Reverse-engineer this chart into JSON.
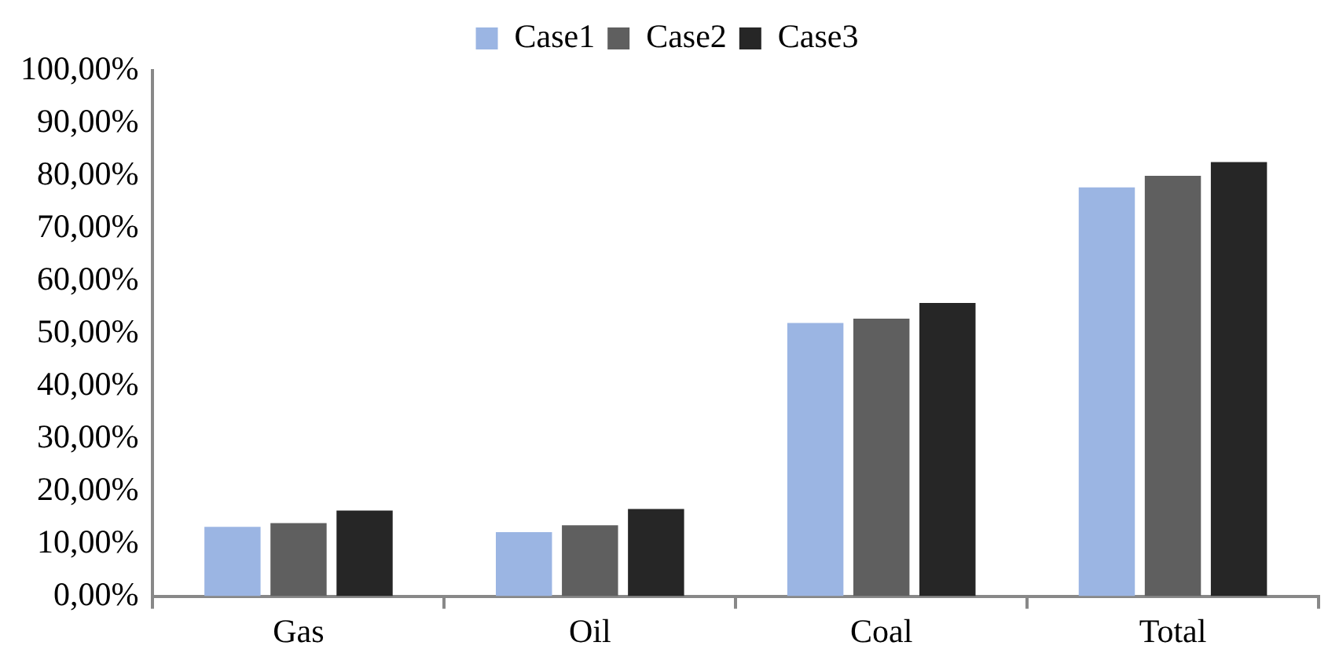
{
  "chart_data": {
    "type": "bar",
    "categories": [
      "Gas",
      "Oil",
      "Coal",
      "Total"
    ],
    "series": [
      {
        "name": "Case1",
        "color": "#9bb5e3",
        "values": [
          13.2,
          12.2,
          52.0,
          77.8
        ]
      },
      {
        "name": "Case2",
        "color": "#5f5f5f",
        "values": [
          13.9,
          13.5,
          52.8,
          80.0
        ]
      },
      {
        "name": "Case3",
        "color": "#262626",
        "values": [
          16.3,
          16.6,
          55.8,
          82.6
        ]
      }
    ],
    "ylim": [
      0,
      100
    ],
    "yticks": [
      {
        "value": 0,
        "label": "0,00%"
      },
      {
        "value": 10,
        "label": "10,00%"
      },
      {
        "value": 20,
        "label": "20,00%"
      },
      {
        "value": 30,
        "label": "30,00%"
      },
      {
        "value": 40,
        "label": "40,00%"
      },
      {
        "value": 50,
        "label": "50,00%"
      },
      {
        "value": 60,
        "label": "60,00%"
      },
      {
        "value": 70,
        "label": "70,00%"
      },
      {
        "value": 80,
        "label": "80,00%"
      },
      {
        "value": 90,
        "label": "90,00%"
      },
      {
        "value": 100,
        "label": "100,00%"
      }
    ],
    "grid": false,
    "legend": "top"
  }
}
